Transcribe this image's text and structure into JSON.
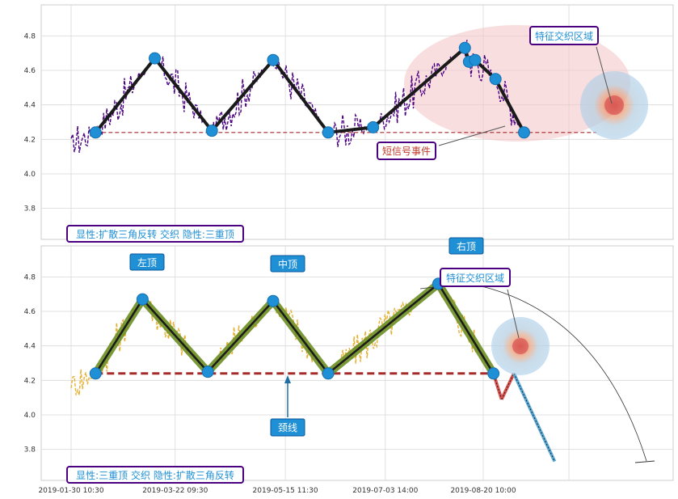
{
  "chart_data": [
    {
      "type": "line",
      "yticks": [
        "4.8",
        "4.6",
        "4.4",
        "4.2",
        "4.0",
        "3.8"
      ],
      "ylim": [
        3.62,
        4.98
      ],
      "grid": true,
      "pivots": [
        {
          "x": "2019-02-11",
          "y": 4.24
        },
        {
          "x": "2019-03-12",
          "y": 4.67
        },
        {
          "x": "2019-04-09",
          "y": 4.25
        },
        {
          "x": "2019-05-09",
          "y": 4.66
        },
        {
          "x": "2019-06-05",
          "y": 4.24
        },
        {
          "x": "2019-06-27",
          "y": 4.27
        },
        {
          "x": "2019-08-11",
          "y": 4.73
        },
        {
          "x": "2019-08-13",
          "y": 4.65
        },
        {
          "x": "2019-08-16",
          "y": 4.66
        },
        {
          "x": "2019-08-26",
          "y": 4.55
        },
        {
          "x": "2019-09-09",
          "y": 4.24
        }
      ],
      "neckline": 4.24,
      "annotations": {
        "short_signal": "短信号事件",
        "feature_zone": "特征交织区域"
      },
      "legend_text": "显性:扩散三角反转 交织 隐性:三重顶",
      "colors": {
        "price": "#4B0082",
        "pattern": "#1a1a1a",
        "pivot": "#1f8fd6",
        "neckline": "#a52a2a",
        "zone": "#f4c2c6"
      }
    },
    {
      "type": "line",
      "yticks": [
        "4.8",
        "4.6",
        "4.4",
        "4.2",
        "4.0",
        "3.8"
      ],
      "ylim": [
        3.62,
        4.98
      ],
      "grid": true,
      "xticks": [
        "2019-01-30 10:30",
        "2019-03-22 09:30",
        "2019-05-15 11:30",
        "2019-07-03 14:00",
        "2019-08-20 10:00"
      ],
      "pivots": [
        {
          "x": "2019-02-11",
          "y": 4.24
        },
        {
          "x": "2019-03-06",
          "y": 4.67
        },
        {
          "x": "2019-04-07",
          "y": 4.25
        },
        {
          "x": "2019-05-09",
          "y": 4.66
        },
        {
          "x": "2019-06-05",
          "y": 4.24
        },
        {
          "x": "2019-07-29",
          "y": 4.76
        },
        {
          "x": "2019-08-25",
          "y": 4.24
        }
      ],
      "projection": [
        {
          "x": "2019-08-25",
          "y": 4.24
        },
        {
          "x": "2019-08-29",
          "y": 4.09
        },
        {
          "x": "2019-09-04",
          "y": 4.24
        },
        {
          "x": "2019-09-24",
          "y": 3.73
        }
      ],
      "neckline": 4.24,
      "labels": {
        "left_top": "左顶",
        "mid_top": "中顶",
        "right_top": "右顶",
        "neckline": "颈线",
        "feature_zone": "特征交织区域"
      },
      "legend_text": "显性:三重顶 交织 隐性:扩散三角反转",
      "colors": {
        "price": "#e8b030",
        "pattern": "#1a1a1a",
        "pattern_band": "#6b8e23",
        "pivot": "#1f8fd6",
        "neckline": "#a52a2a",
        "proj_up": "#d9534f",
        "proj_down": "#5aa9d6"
      }
    }
  ]
}
